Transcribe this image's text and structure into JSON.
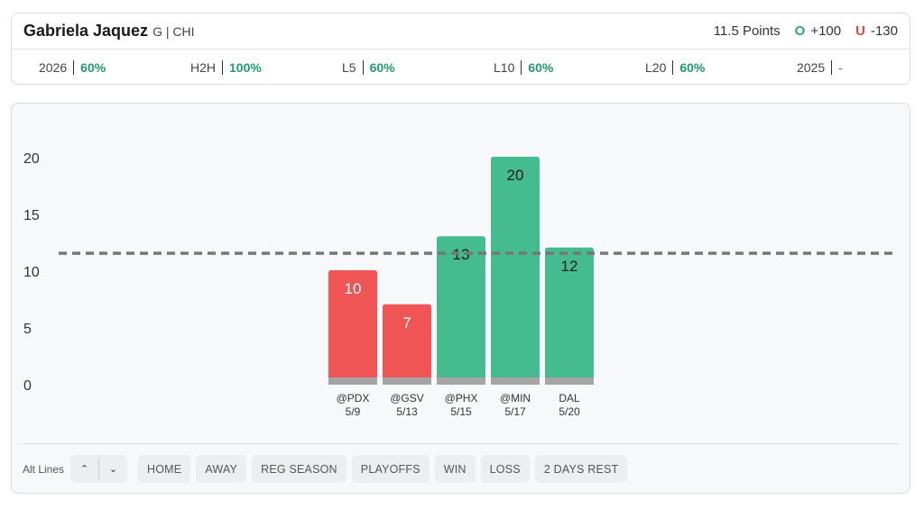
{
  "header": {
    "player_name": "Gabriela Jaquez",
    "player_meta": "G | CHI",
    "line_label": "11.5 Points",
    "over_letter": "O",
    "over_odds": "+100",
    "under_letter": "U",
    "under_odds": "-130"
  },
  "stats": [
    {
      "label": "2026",
      "value": "60%"
    },
    {
      "label": "H2H",
      "value": "100%"
    },
    {
      "label": "L5",
      "value": "60%"
    },
    {
      "label": "L10",
      "value": "60%"
    },
    {
      "label": "L20",
      "value": "60%"
    },
    {
      "label": "2025",
      "value": "-"
    }
  ],
  "chart_data": {
    "type": "bar",
    "categories": [
      "@PDX 5/9",
      "@GSV 5/13",
      "@PHX 5/15",
      "@MIN 5/17",
      "DAL 5/20"
    ],
    "opponents": [
      "@PDX",
      "@GSV",
      "@PHX",
      "@MIN",
      "DAL"
    ],
    "dates": [
      "5/9",
      "5/13",
      "5/15",
      "5/17",
      "5/20"
    ],
    "values": [
      10,
      7,
      13,
      20,
      12
    ],
    "line": 11.5,
    "yticks": [
      0,
      5,
      10,
      15,
      20
    ],
    "ylim": [
      0,
      20
    ],
    "colors": {
      "over": "#45bb90",
      "under": "#ef5555",
      "base": "#a5a5a5",
      "line": "#777777"
    }
  },
  "filters": {
    "alt_lines_label": "Alt Lines",
    "up_icon": "chevron-up-icon",
    "down_icon": "chevron-down-icon",
    "chips": [
      "HOME",
      "AWAY",
      "REG SEASON",
      "PLAYOFFS",
      "WIN",
      "LOSS",
      "2 DAYS REST"
    ]
  }
}
